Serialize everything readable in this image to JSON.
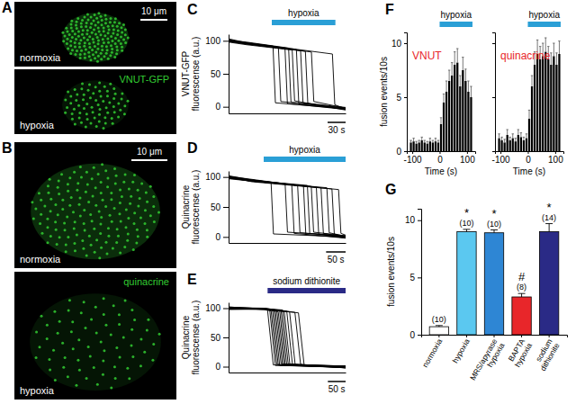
{
  "chart_data": [
    {
      "type": "image",
      "panel": "A",
      "stain": "VNUT-GFP",
      "color": "#33cc33",
      "scale_bar": {
        "value": 10,
        "label": "10 μm"
      },
      "images": [
        {
          "label": "normoxia"
        },
        {
          "label": "hypoxia"
        }
      ]
    },
    {
      "type": "image",
      "panel": "B",
      "stain": "quinacrine",
      "color": "#33cc33",
      "scale_bar": {
        "value": 10,
        "label": "10 μm"
      },
      "images": [
        {
          "label": "normoxia"
        },
        {
          "label": "hypoxia"
        }
      ]
    },
    {
      "type": "line",
      "panel": "C",
      "y_label": "VNUT-GFP fluorescense (a.u.)",
      "color": "#000000",
      "xlim": [
        0,
        195
      ],
      "ylim": [
        -10,
        110
      ],
      "yticks": [
        0,
        50,
        100
      ],
      "tick_labels": "y",
      "stimulus": {
        "label": "hypoxia",
        "start": 72,
        "end": 178,
        "color": "#2a9fd6"
      },
      "scale_bar": {
        "value": 30,
        "label": "30 s"
      },
      "series": [
        {
          "x": [
            0,
            30,
            74,
            78,
            195
          ],
          "values": [
            100,
            97,
            92,
            6,
            -3
          ]
        },
        {
          "x": [
            0,
            30,
            83,
            87,
            195
          ],
          "values": [
            102,
            96,
            90,
            8,
            -2
          ]
        },
        {
          "x": [
            0,
            30,
            94,
            98,
            195
          ],
          "values": [
            99,
            95,
            88,
            5,
            -4
          ]
        },
        {
          "x": [
            0,
            30,
            100,
            104,
            195
          ],
          "values": [
            101,
            98,
            89,
            7,
            -2
          ]
        },
        {
          "x": [
            0,
            30,
            106,
            110,
            195
          ],
          "values": [
            98,
            94,
            86,
            9,
            -5
          ]
        },
        {
          "x": [
            0,
            30,
            113,
            117,
            195
          ],
          "values": [
            100,
            96,
            87,
            4,
            -3
          ]
        },
        {
          "x": [
            0,
            30,
            120,
            124,
            195
          ],
          "values": [
            103,
            97,
            85,
            6,
            -1
          ]
        },
        {
          "x": [
            0,
            30,
            128,
            132,
            195
          ],
          "values": [
            99,
            95,
            84,
            5,
            -4
          ]
        },
        {
          "x": [
            0,
            30,
            138,
            142,
            195
          ],
          "values": [
            101,
            96,
            83,
            8,
            -2
          ]
        },
        {
          "x": [
            0,
            30,
            173,
            177,
            195
          ],
          "values": [
            100,
            97,
            80,
            3,
            -3
          ]
        }
      ]
    },
    {
      "type": "line",
      "panel": "D",
      "y_label": "Quinacrine fluorescense (a.u.)",
      "color": "#000000",
      "xlim": [
        0,
        300
      ],
      "ylim": [
        -10,
        110
      ],
      "yticks": [
        0,
        50,
        100
      ],
      "tick_labels": "y",
      "stimulus": {
        "label": "hypoxia",
        "start": 90,
        "end": 300,
        "color": "#2a9fd6"
      },
      "scale_bar": {
        "value": 50,
        "label": "50 s"
      },
      "series": [
        {
          "x": [
            0,
            60,
            109,
            115,
            300
          ],
          "values": [
            100,
            94,
            90,
            5,
            0
          ]
        },
        {
          "x": [
            0,
            60,
            145,
            151,
            300
          ],
          "values": [
            98,
            95,
            88,
            8,
            2
          ]
        },
        {
          "x": [
            0,
            60,
            162,
            168,
            300
          ],
          "values": [
            101,
            96,
            87,
            6,
            -2
          ]
        },
        {
          "x": [
            0,
            60,
            177,
            183,
            300
          ],
          "values": [
            99,
            93,
            86,
            7,
            1
          ]
        },
        {
          "x": [
            0,
            60,
            192,
            198,
            300
          ],
          "values": [
            102,
            95,
            85,
            4,
            -1
          ]
        },
        {
          "x": [
            0,
            60,
            202,
            208,
            300
          ],
          "values": [
            100,
            94,
            86,
            6,
            0
          ]
        },
        {
          "x": [
            0,
            60,
            212,
            218,
            300
          ],
          "values": [
            97,
            93,
            84,
            8,
            2
          ]
        },
        {
          "x": [
            0,
            60,
            225,
            231,
            300
          ],
          "values": [
            100,
            95,
            83,
            5,
            -2
          ]
        },
        {
          "x": [
            0,
            60,
            237,
            243,
            300
          ],
          "values": [
            101,
            94,
            82,
            6,
            0
          ]
        },
        {
          "x": [
            0,
            60,
            252,
            258,
            300
          ],
          "values": [
            99,
            93,
            82,
            7,
            1
          ]
        },
        {
          "x": [
            0,
            60,
            265,
            271,
            300
          ],
          "values": [
            100,
            92,
            80,
            5,
            -1
          ]
        },
        {
          "x": [
            0,
            60,
            282,
            288,
            300
          ],
          "values": [
            98,
            93,
            79,
            6,
            3
          ]
        }
      ]
    },
    {
      "type": "line",
      "panel": "E",
      "y_label": "Quinacrine fluorescense (a.u.)",
      "color": "#000000",
      "xlim": [
        0,
        330
      ],
      "ylim": [
        -10,
        110
      ],
      "yticks": [
        0,
        50,
        100
      ],
      "tick_labels": "y",
      "stimulus": {
        "label": "sodium dithionite",
        "start": 110,
        "end": 330,
        "color": "#2a2a86"
      },
      "scale_bar": {
        "value": 50,
        "label": "50 s"
      },
      "series": [
        {
          "x": [
            0,
            100,
            110,
            126,
            330
          ],
          "values": [
            100,
            99,
            96,
            3,
            -1
          ]
        },
        {
          "x": [
            0,
            100,
            116,
            132,
            330
          ],
          "values": [
            101,
            100,
            97,
            2,
            0
          ]
        },
        {
          "x": [
            0,
            100,
            120,
            136,
            330
          ],
          "values": [
            99,
            98,
            95,
            4,
            -2
          ]
        },
        {
          "x": [
            0,
            100,
            124,
            140,
            330
          ],
          "values": [
            100,
            100,
            96,
            3,
            1
          ]
        },
        {
          "x": [
            0,
            100,
            128,
            144,
            330
          ],
          "values": [
            102,
            99,
            97,
            2,
            -1
          ]
        },
        {
          "x": [
            0,
            100,
            132,
            148,
            330
          ],
          "values": [
            98,
            98,
            95,
            5,
            0
          ]
        },
        {
          "x": [
            0,
            100,
            136,
            152,
            330
          ],
          "values": [
            100,
            99,
            96,
            3,
            -2
          ]
        },
        {
          "x": [
            0,
            100,
            140,
            156,
            330
          ],
          "values": [
            101,
            99,
            94,
            4,
            1
          ]
        },
        {
          "x": [
            0,
            100,
            144,
            160,
            330
          ],
          "values": [
            99,
            100,
            96,
            2,
            -1
          ]
        },
        {
          "x": [
            0,
            100,
            148,
            164,
            330
          ],
          "values": [
            100,
            98,
            95,
            3,
            0
          ]
        },
        {
          "x": [
            0,
            100,
            152,
            168,
            330
          ],
          "values": [
            102,
            99,
            97,
            5,
            -2
          ]
        },
        {
          "x": [
            0,
            100,
            157,
            173,
            330
          ],
          "values": [
            99,
            99,
            94,
            3,
            1
          ]
        },
        {
          "x": [
            0,
            100,
            164,
            180,
            330
          ],
          "values": [
            100,
            100,
            95,
            4,
            -1
          ]
        },
        {
          "x": [
            0,
            100,
            172,
            188,
            330
          ],
          "values": [
            101,
            98,
            94,
            2,
            0
          ]
        },
        {
          "x": [
            0,
            100,
            187,
            203,
            330
          ],
          "values": [
            98,
            99,
            93,
            4,
            -2
          ]
        },
        {
          "x": [
            0,
            100,
            197,
            213,
            330
          ],
          "values": [
            100,
            98,
            92,
            3,
            1
          ]
        }
      ]
    },
    {
      "type": "histogram",
      "panel": "F",
      "y_label": "fusion events/10s",
      "x_label": "Time (s)",
      "color": "#000000",
      "bins": [
        -110,
        -100,
        -90,
        -80,
        -70,
        -60,
        -50,
        -40,
        -30,
        -20,
        -10,
        0,
        10,
        20,
        30,
        40,
        50,
        60,
        70,
        80,
        90,
        100,
        110,
        120
      ],
      "xlim": [
        -120,
        130
      ],
      "xticks": [
        -100,
        0,
        100
      ],
      "ylim": [
        0,
        11
      ],
      "yticks": [
        0,
        5,
        10
      ],
      "subplots": [
        {
          "title": "VNUT",
          "color": "#e8262a",
          "values": [
            0.8,
            0.9,
            0.7,
            0.8,
            1.0,
            0.8,
            0.7,
            0.9,
            0.8,
            0.9,
            0.8,
            2.5,
            4.5,
            5.5,
            6.5,
            7.0,
            8.0,
            8.2,
            6.0,
            7.5,
            6.5,
            5.5,
            5.0
          ],
          "errors": [
            0.2,
            0.3,
            0.2,
            0.2,
            0.3,
            0.2,
            0.2,
            0.3,
            0.2,
            0.3,
            0.2,
            0.6,
            0.8,
            1.0,
            1.0,
            1.2,
            1.2,
            1.3,
            1.0,
            1.2,
            1.1,
            1.0,
            1.0
          ],
          "stimulus": {
            "label": "hypoxia",
            "start": 0,
            "end": 120,
            "color": "#2a9fd6"
          }
        },
        {
          "title": "quinacrine",
          "color": "#e8262a",
          "values": [
            1.2,
            1.0,
            0.8,
            1.5,
            1.0,
            1.2,
            0.9,
            1.5,
            1.3,
            1.0,
            1.2,
            3.0,
            6.0,
            8.0,
            9.0,
            8.5,
            8.8,
            9.2,
            8.5,
            8.0,
            8.8,
            8.0,
            9.0
          ],
          "errors": [
            0.4,
            0.3,
            0.3,
            0.5,
            0.3,
            0.4,
            0.3,
            0.5,
            0.4,
            0.3,
            0.4,
            0.8,
            1.0,
            1.2,
            1.3,
            1.2,
            1.2,
            1.3,
            1.2,
            1.1,
            1.2,
            1.1,
            1.2
          ],
          "stimulus": {
            "label": "hypoxia",
            "start": 0,
            "end": 120,
            "color": "#2a9fd6"
          }
        }
      ]
    },
    {
      "type": "bar",
      "panel": "G",
      "y_label": "fusion events/10s",
      "categories": [
        "normoxia",
        "hypoxia",
        "MRS/apyrase hypoxia",
        "BAPTA hypoxia",
        "sodium dithionite"
      ],
      "values": [
        0.7,
        9.0,
        8.9,
        3.3,
        9.0
      ],
      "errors": [
        0.1,
        0.2,
        0.25,
        0.3,
        0.7
      ],
      "n_labels": [
        "(10)",
        "(10)",
        "(10)",
        "(8)",
        "(14)"
      ],
      "significance": [
        null,
        "*",
        "*",
        "#",
        "*"
      ],
      "colors": [
        "#ffffff",
        "#5bc8f0",
        "#2e86d4",
        "#e8262a",
        "#2a2a86"
      ],
      "ylim": [
        0,
        11
      ],
      "yticks": [
        0,
        5,
        10
      ]
    }
  ]
}
